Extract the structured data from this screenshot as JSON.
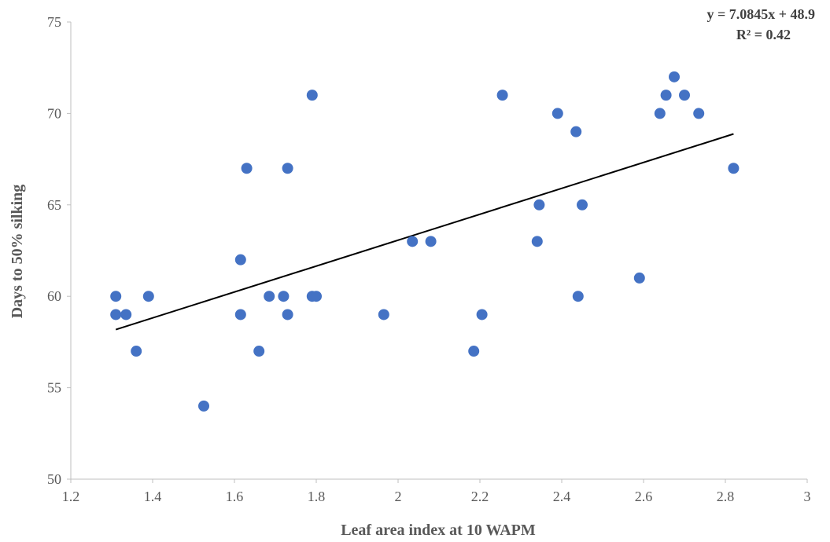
{
  "chart_data": {
    "type": "scatter",
    "xlabel": "Leaf area index at 10 WAPM",
    "ylabel": "Days to 50% silking",
    "xlim": [
      1.2,
      3
    ],
    "ylim": [
      50,
      75
    ],
    "x_ticks": [
      "1.2",
      "1.4",
      "1.6",
      "1.8",
      "2",
      "2.2",
      "2.4",
      "2.6",
      "2.8",
      "3"
    ],
    "y_ticks": [
      "50",
      "55",
      "60",
      "65",
      "70",
      "75"
    ],
    "grid": false,
    "marker_color": "#4472C4",
    "trendline_color": "#000000",
    "series": [
      {
        "points": [
          [
            1.31,
            60
          ],
          [
            1.31,
            59
          ],
          [
            1.335,
            59
          ],
          [
            1.36,
            57
          ],
          [
            1.39,
            60
          ],
          [
            1.525,
            54
          ],
          [
            1.615,
            62
          ],
          [
            1.615,
            59
          ],
          [
            1.63,
            67
          ],
          [
            1.66,
            57
          ],
          [
            1.685,
            60
          ],
          [
            1.72,
            60
          ],
          [
            1.73,
            67
          ],
          [
            1.73,
            59
          ],
          [
            1.79,
            71
          ],
          [
            1.79,
            60
          ],
          [
            1.8,
            60
          ],
          [
            1.965,
            59
          ],
          [
            2.035,
            63
          ],
          [
            2.08,
            63
          ],
          [
            2.185,
            57
          ],
          [
            2.205,
            59
          ],
          [
            2.255,
            71
          ],
          [
            2.34,
            63
          ],
          [
            2.345,
            65
          ],
          [
            2.39,
            70
          ],
          [
            2.435,
            69
          ],
          [
            2.44,
            60
          ],
          [
            2.45,
            65
          ],
          [
            2.59,
            61
          ],
          [
            2.64,
            70
          ],
          [
            2.655,
            71
          ],
          [
            2.675,
            72
          ],
          [
            2.7,
            71
          ],
          [
            2.735,
            70
          ],
          [
            2.82,
            67
          ]
        ]
      }
    ],
    "trendline": {
      "slope": 7.0845,
      "intercept": 48.9,
      "x_range": [
        1.31,
        2.82
      ],
      "equation": "y = 7.0845x + 48.9",
      "r_squared": "R² = 0.42"
    }
  }
}
